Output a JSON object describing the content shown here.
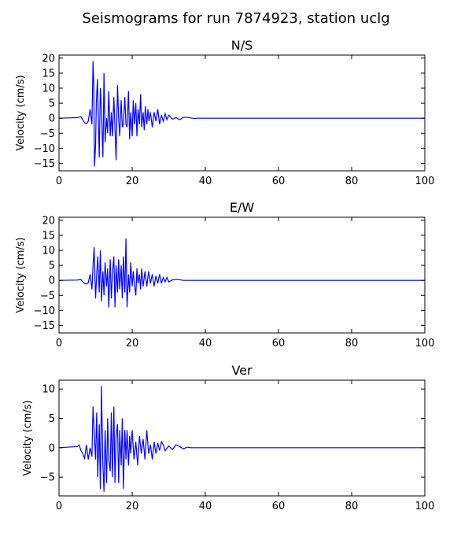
{
  "chart_data": {
    "title": "Seismograms for run 7874923, station uclg",
    "type": "line",
    "panels": [
      {
        "title": "N/S",
        "ylabel": "Velocity (cm/s)",
        "xlim": [
          0,
          100
        ],
        "ylim": [
          -17.5,
          21
        ],
        "xticks": [
          0,
          20,
          40,
          60,
          80,
          100
        ],
        "yticks": [
          -15,
          -10,
          -5,
          0,
          5,
          10,
          15,
          20
        ],
        "series": [
          {
            "color": "#0000ff",
            "x": [
              0,
              5,
              6,
              6.5,
              7,
              7.5,
              8,
              8.5,
              9,
              9.3,
              9.5,
              9.7,
              10,
              10.2,
              10.5,
              10.8,
              11,
              11.3,
              11.6,
              12,
              12.3,
              12.6,
              13,
              13.3,
              13.6,
              14,
              14.3,
              14.6,
              15,
              15.3,
              15.6,
              16,
              16.3,
              16.6,
              17,
              17.3,
              17.6,
              18,
              18.3,
              18.6,
              19,
              19.3,
              19.6,
              20,
              20.3,
              20.6,
              21,
              21.3,
              21.6,
              22,
              22.3,
              22.6,
              23,
              23.3,
              23.6,
              24,
              24.3,
              24.6,
              25,
              25.5,
              26,
              26.5,
              27,
              27.5,
              28,
              28.5,
              29,
              29.5,
              30,
              31,
              32,
              33,
              34,
              35,
              36,
              37,
              38,
              40,
              45,
              50,
              60,
              70,
              80,
              90,
              100
            ],
            "y": [
              0,
              0.2,
              0.5,
              -0.5,
              -1.5,
              -1.8,
              -1,
              3,
              -2,
              19,
              12,
              -16,
              -9,
              5,
              13,
              -2,
              -13,
              10,
              3,
              -13,
              15,
              -8,
              0,
              -5,
              9,
              -6,
              2,
              -6,
              7,
              -3,
              -14,
              11,
              0,
              -6,
              6,
              -3,
              -2,
              7,
              -2,
              -3,
              9,
              -7,
              2,
              -6,
              6,
              -2,
              5,
              -6,
              3,
              -2,
              8,
              -3,
              2,
              -4,
              4,
              -2,
              3,
              -1,
              2,
              -3,
              2,
              -1,
              3,
              -2,
              1,
              -1,
              1.5,
              -0.5,
              1,
              -0.3,
              0.2,
              -0.5,
              0.3,
              0.3,
              0.1,
              -0.1,
              0,
              0,
              0,
              0,
              0,
              0,
              0,
              0,
              0
            ]
          }
        ]
      },
      {
        "title": "E/W",
        "ylabel": "Velocity (cm/s)",
        "xlim": [
          0,
          100
        ],
        "ylim": [
          -17.5,
          21
        ],
        "xticks": [
          0,
          20,
          40,
          60,
          80,
          100
        ],
        "yticks": [
          -15,
          -10,
          -5,
          0,
          5,
          10,
          15,
          20
        ],
        "series": [
          {
            "color": "#0000ff",
            "x": [
              0,
              5,
              6,
              6.5,
              7,
              7.5,
              8,
              8.5,
              9,
              9.3,
              9.6,
              10,
              10.3,
              10.6,
              11,
              11.3,
              11.6,
              12,
              12.3,
              12.6,
              13,
              13.3,
              13.6,
              14,
              14.3,
              14.6,
              15,
              15.3,
              15.6,
              16,
              16.3,
              16.6,
              17,
              17.3,
              17.6,
              18,
              18.3,
              18.6,
              19,
              19.3,
              19.6,
              20,
              20.3,
              20.6,
              21,
              21.3,
              21.6,
              22,
              22.3,
              22.6,
              23,
              23.5,
              24,
              24.5,
              25,
              25.5,
              26,
              26.5,
              27,
              27.5,
              28,
              28.5,
              29,
              29.5,
              30,
              31,
              32,
              33,
              34,
              35,
              36,
              38,
              40,
              50,
              60,
              70,
              80,
              90,
              100
            ],
            "y": [
              0,
              0.1,
              0.3,
              -0.5,
              -1,
              -1.2,
              -0.8,
              2,
              -3,
              5,
              11,
              -6,
              2,
              8,
              -4,
              10,
              -7,
              3,
              -5,
              6,
              -2,
              4,
              -9,
              7,
              -6,
              2,
              8,
              -9,
              5,
              -4,
              7,
              -3,
              5,
              -6,
              8,
              -4,
              14,
              -9,
              2,
              -4,
              6,
              -2,
              3,
              -1,
              -5,
              4,
              -1,
              2,
              -3,
              4,
              -2,
              3,
              -2,
              3,
              -1,
              2,
              -2,
              1.5,
              -1,
              2,
              -1,
              1,
              -0.5,
              1,
              -0.5,
              0.2,
              0.3,
              0.2,
              0,
              0,
              0,
              0,
              0,
              0,
              0,
              0,
              0,
              0,
              0
            ]
          }
        ]
      },
      {
        "title": "Ver",
        "ylabel": "Velocity (cm/s)",
        "xlim": [
          0,
          100
        ],
        "ylim": [
          -8.2,
          11.5
        ],
        "xticks": [
          0,
          20,
          40,
          60,
          80,
          100
        ],
        "yticks": [
          -5,
          0,
          5,
          10
        ],
        "series": [
          {
            "color": "#0000ff",
            "x": [
              0,
              5,
              5.5,
              6,
              6.5,
              7,
              7.5,
              8,
              8.5,
              9,
              9.3,
              9.6,
              10,
              10.3,
              10.6,
              11,
              11.3,
              11.6,
              12,
              12.3,
              12.6,
              13,
              13.3,
              13.6,
              14,
              14.3,
              14.6,
              15,
              15.3,
              15.6,
              16,
              16.3,
              16.6,
              17,
              17.3,
              17.6,
              18,
              18.3,
              18.6,
              19,
              19.3,
              19.6,
              20,
              20.5,
              21,
              21.5,
              22,
              22.5,
              23,
              23.5,
              24,
              24.5,
              25,
              25.5,
              26,
              26.5,
              27,
              27.5,
              28,
              28.5,
              29,
              30,
              31,
              32,
              33,
              34,
              35,
              36,
              38,
              40,
              50,
              60,
              70,
              80,
              90,
              100
            ],
            "y": [
              0,
              0.2,
              0.5,
              -0.5,
              -1,
              -1.8,
              0.5,
              -2,
              0,
              -1.5,
              7,
              3,
              -2,
              6,
              -5,
              4,
              -7,
              10.5,
              -3,
              -7.5,
              3,
              -6,
              5,
              -2,
              -4,
              6,
              -5,
              7,
              -6,
              2,
              4,
              -6,
              3,
              -3,
              5,
              -7,
              3,
              -2,
              3,
              -3,
              2,
              -1,
              3,
              -2,
              1,
              -3,
              2,
              -1,
              1.5,
              -2,
              3,
              -1,
              0.5,
              -2,
              1,
              -1,
              0.8,
              -0.5,
              1,
              0.5,
              -0.5,
              0.3,
              -0.3,
              0.5,
              0.2,
              -0.2,
              0.1,
              0,
              0,
              0,
              0,
              0,
              0,
              0,
              0,
              0
            ]
          }
        ]
      }
    ]
  }
}
